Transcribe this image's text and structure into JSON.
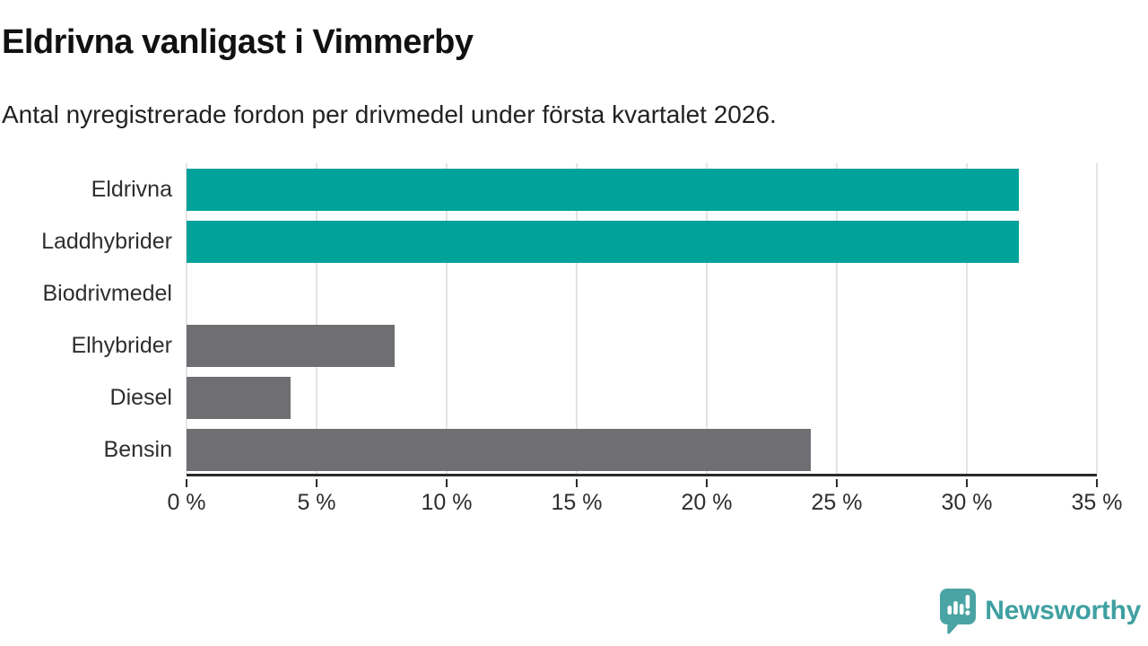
{
  "title": "Eldrivna vanligast i Vimmerby",
  "subtitle": "Antal nyregistrerade fordon per drivmedel under första kvartalet 2026.",
  "chart_data": {
    "type": "bar",
    "orientation": "horizontal",
    "categories": [
      "Eldrivna",
      "Laddhybrider",
      "Biodrivmedel",
      "Elhybrider",
      "Diesel",
      "Bensin"
    ],
    "values": [
      32,
      32,
      0,
      8,
      4,
      24
    ],
    "unit": "%",
    "bar_colors": [
      "#00a29a",
      "#00a29a",
      "#6e6e73",
      "#6e6e73",
      "#6e6e73",
      "#6e6e73"
    ],
    "x_ticks": [
      0,
      5,
      10,
      15,
      20,
      25,
      30,
      35
    ],
    "x_tick_labels": [
      "0 %",
      "5 %",
      "10 %",
      "15 %",
      "20 %",
      "25 %",
      "30 %",
      "35 %"
    ],
    "xlim": [
      0,
      35
    ],
    "grid": "vertical-only",
    "gridline_color": "#e4e4e4",
    "axis_color": "#2b2b2b",
    "legend": "none"
  },
  "colors": {
    "highlight_teal": "#00a29a",
    "neutral_gray": "#6e6e73",
    "logo_teal": "#4aa4a4",
    "logo_text_teal": "#3fa0a1"
  },
  "branding": {
    "logo_text": "Newsworthy",
    "logo_icon": "speech-bubble-bar-chart-exclamation"
  }
}
